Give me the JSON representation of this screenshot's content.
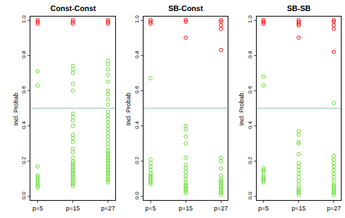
{
  "chart_data": [
    {
      "type": "scatter",
      "title": "Const-Const",
      "y_label": "Incl. Probab.",
      "categories": [
        "p=5",
        "p=15",
        "p=27"
      ],
      "ylim": [
        -0.02,
        1.02
      ],
      "yticks": [
        {
          "value": 0,
          "label": "0.0"
        },
        {
          "value": 0.2,
          "label": "0.2"
        },
        {
          "value": 0.4,
          "label": "0.4"
        },
        {
          "value": 0.6,
          "label": "0.6"
        },
        {
          "value": 0.8,
          "label": "0.8"
        },
        {
          "value": 1,
          "label": "1.0"
        }
      ],
      "threshold": 0.5,
      "series": [
        {
          "color": "#ff0000",
          "marker": "open-circle",
          "values": [
            [
              1.0,
              0.99,
              0.98
            ],
            [
              1.0,
              0.99,
              0.98
            ],
            [
              1.0,
              0.99,
              0.98
            ]
          ]
        },
        {
          "color": "#66dd33",
          "marker": "open-circle",
          "values": [
            [
              0.71,
              0.63,
              0.17,
              0.12,
              0.11,
              0.1,
              0.09,
              0.08,
              0.07,
              0.06,
              0.05
            ],
            [
              0.74,
              0.72,
              0.7,
              0.64,
              0.6,
              0.47,
              0.45,
              0.43,
              0.4,
              0.35,
              0.33,
              0.31,
              0.27,
              0.25,
              0.22,
              0.2,
              0.19,
              0.18,
              0.17,
              0.16,
              0.15,
              0.14,
              0.13,
              0.12,
              0.11,
              0.1,
              0.09,
              0.08,
              0.07,
              0.06
            ],
            [
              0.77,
              0.75,
              0.72,
              0.69,
              0.65,
              0.6,
              0.58,
              0.55,
              0.52,
              0.48,
              0.46,
              0.44,
              0.42,
              0.4,
              0.38,
              0.36,
              0.34,
              0.32,
              0.3,
              0.28,
              0.26,
              0.25,
              0.24,
              0.23,
              0.22,
              0.21,
              0.2,
              0.19,
              0.18,
              0.17,
              0.16,
              0.15,
              0.14,
              0.13,
              0.12,
              0.11,
              0.1,
              0.09,
              0.08
            ]
          ]
        }
      ]
    },
    {
      "type": "scatter",
      "title": "SB-Const",
      "y_label": "Incl. Probab.",
      "categories": [
        "p=5",
        "p=15",
        "p=27"
      ],
      "ylim": [
        -0.02,
        1.02
      ],
      "yticks": [
        {
          "value": 0,
          "label": "0.0"
        },
        {
          "value": 0.2,
          "label": "0.2"
        },
        {
          "value": 0.4,
          "label": "0.4"
        },
        {
          "value": 0.6,
          "label": "0.6"
        },
        {
          "value": 0.8,
          "label": "0.8"
        },
        {
          "value": 1,
          "label": "1.0"
        }
      ],
      "threshold": 0.5,
      "series": [
        {
          "color": "#ff0000",
          "marker": "open-circle",
          "values": [
            [
              1.0,
              0.99,
              0.98
            ],
            [
              1.0,
              0.99,
              0.9
            ],
            [
              1.0,
              0.99,
              0.97,
              0.95,
              0.83
            ]
          ]
        },
        {
          "color": "#66dd33",
          "marker": "open-circle",
          "values": [
            [
              0.67,
              0.21,
              0.19,
              0.17,
              0.15,
              0.13,
              0.12,
              0.11,
              0.1,
              0.09,
              0.08,
              0.07
            ],
            [
              0.4,
              0.38,
              0.34,
              0.3,
              0.22,
              0.18,
              0.16,
              0.14,
              0.12,
              0.1,
              0.08,
              0.07,
              0.06,
              0.05,
              0.04,
              0.03,
              0.02
            ],
            [
              0.22,
              0.2,
              0.16,
              0.12,
              0.1,
              0.09,
              0.08,
              0.07,
              0.06,
              0.05,
              0.04,
              0.03,
              0.02,
              0.01
            ]
          ]
        }
      ]
    },
    {
      "type": "scatter",
      "title": "SB-SB",
      "y_label": "Incl. Probab.",
      "categories": [
        "p=5",
        "p=15",
        "p=27"
      ],
      "ylim": [
        -0.02,
        1.02
      ],
      "yticks": [
        {
          "value": 0,
          "label": "0.0"
        },
        {
          "value": 0.2,
          "label": "0.2"
        },
        {
          "value": 0.4,
          "label": "0.4"
        },
        {
          "value": 0.6,
          "label": "0.6"
        },
        {
          "value": 0.8,
          "label": "0.8"
        },
        {
          "value": 1,
          "label": "1.0"
        }
      ],
      "threshold": 0.5,
      "series": [
        {
          "color": "#ff0000",
          "marker": "open-circle",
          "values": [
            [
              1.0,
              0.99,
              0.98
            ],
            [
              1.0,
              0.99,
              0.98,
              0.97,
              0.9
            ],
            [
              1.0,
              0.99,
              0.97,
              0.95,
              0.82
            ]
          ]
        },
        {
          "color": "#66dd33",
          "marker": "open-circle",
          "values": [
            [
              0.68,
              0.63,
              0.16,
              0.15,
              0.14,
              0.12,
              0.11,
              0.1,
              0.09,
              0.08
            ],
            [
              0.37,
              0.35,
              0.31,
              0.3,
              0.24,
              0.19,
              0.17,
              0.15,
              0.13,
              0.11,
              0.09,
              0.07,
              0.05,
              0.04,
              0.03,
              0.02,
              0.01
            ],
            [
              0.53,
              0.23,
              0.21,
              0.19,
              0.17,
              0.15,
              0.13,
              0.11,
              0.09,
              0.07,
              0.06,
              0.05,
              0.04,
              0.03,
              0.02,
              0.01
            ]
          ]
        }
      ]
    }
  ]
}
